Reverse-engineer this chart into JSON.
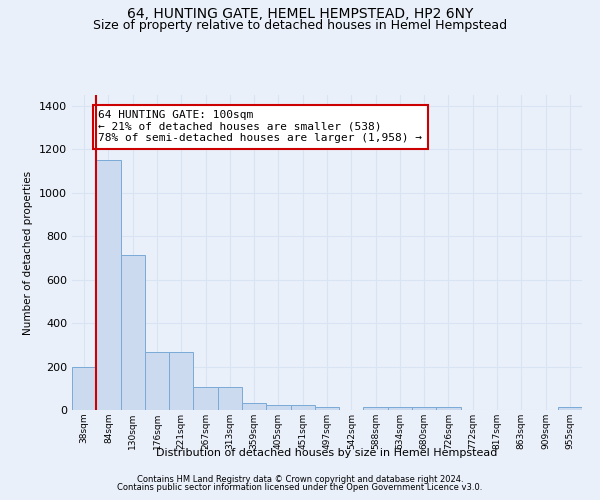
{
  "title": "64, HUNTING GATE, HEMEL HEMPSTEAD, HP2 6NY",
  "subtitle": "Size of property relative to detached houses in Hemel Hempstead",
  "xlabel": "Distribution of detached houses by size in Hemel Hempstead",
  "ylabel": "Number of detached properties",
  "footer1": "Contains HM Land Registry data © Crown copyright and database right 2024.",
  "footer2": "Contains public sector information licensed under the Open Government Licence v3.0.",
  "bins": [
    "38sqm",
    "84sqm",
    "130sqm",
    "176sqm",
    "221sqm",
    "267sqm",
    "313sqm",
    "359sqm",
    "405sqm",
    "451sqm",
    "497sqm",
    "542sqm",
    "588sqm",
    "634sqm",
    "680sqm",
    "726sqm",
    "772sqm",
    "817sqm",
    "863sqm",
    "909sqm",
    "955sqm"
  ],
  "values": [
    197,
    1150,
    715,
    268,
    268,
    107,
    107,
    30,
    25,
    25,
    13,
    0,
    13,
    13,
    13,
    13,
    0,
    0,
    0,
    0,
    13
  ],
  "bar_color": "#ccdaf0",
  "bar_edge_color": "#7aaad8",
  "red_line_index": 0.5,
  "annotation_text": "64 HUNTING GATE: 100sqm\n← 21% of detached houses are smaller (538)\n78% of semi-detached houses are larger (1,958) →",
  "annotation_box_color": "white",
  "annotation_border_color": "#cc0000",
  "ylim": [
    0,
    1450
  ],
  "bg_color": "#eaf0fa",
  "grid_color": "#d8e4f4",
  "title_fontsize": 10,
  "subtitle_fontsize": 9,
  "annotation_fontsize": 8
}
